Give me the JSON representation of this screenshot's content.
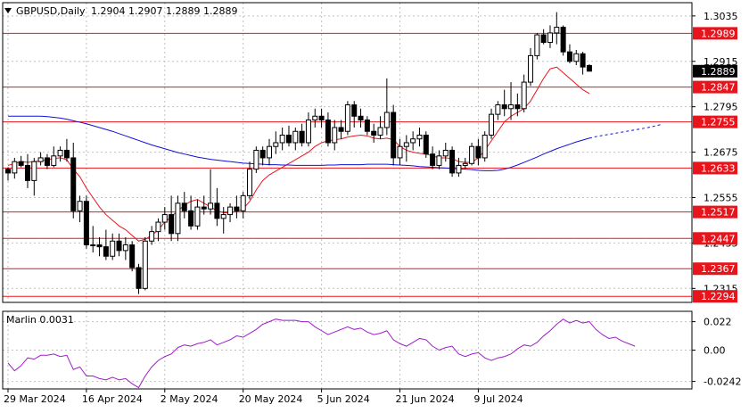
{
  "chart_data": [
    {
      "type": "candlestick",
      "title": "GBPUSD,Daily",
      "ohlc_readout": "1.2904 1.2907 1.2889 1.2889",
      "last_price": 1.2889,
      "last_price_label": "1.2889",
      "ylim": [
        1.2278,
        1.307
      ],
      "y_ticks": [
        {
          "value": 1.3035,
          "label": "1.3035"
        },
        {
          "value": 1.2915,
          "label": "1.2915"
        },
        {
          "value": 1.2795,
          "label": "1.2795"
        },
        {
          "value": 1.2675,
          "label": "1.2675"
        },
        {
          "value": 1.2555,
          "label": "1.2555"
        },
        {
          "value": 1.2435,
          "label": "1.2435"
        },
        {
          "value": 1.2315,
          "label": "1.2315"
        }
      ],
      "levels": [
        {
          "value": 1.2989,
          "label": "1.2989"
        },
        {
          "value": 1.2847,
          "label": "1.2847"
        },
        {
          "value": 1.2755,
          "label": "1.2755"
        },
        {
          "value": 1.2633,
          "label": "1.2633"
        },
        {
          "value": 1.2517,
          "label": "1.2517"
        },
        {
          "value": 1.2447,
          "label": "1.2447"
        },
        {
          "value": 1.2367,
          "label": "1.2367"
        },
        {
          "value": 1.2294,
          "label": "1.2294"
        }
      ],
      "candles": [
        [
          1.263,
          1.2635,
          1.26,
          1.262
        ],
        [
          1.262,
          1.266,
          1.2605,
          1.265
        ],
        [
          1.265,
          1.2665,
          1.2635,
          1.264
        ],
        [
          1.264,
          1.267,
          1.258,
          1.26
        ],
        [
          1.26,
          1.266,
          1.256,
          1.265
        ],
        [
          1.265,
          1.2675,
          1.264,
          1.266
        ],
        [
          1.266,
          1.267,
          1.263,
          1.264
        ],
        [
          1.264,
          1.269,
          1.2635,
          1.2665
        ],
        [
          1.2665,
          1.269,
          1.265,
          1.268
        ],
        [
          1.268,
          1.271,
          1.265,
          1.266
        ],
        [
          1.266,
          1.27,
          1.25,
          1.252
        ],
        [
          1.252,
          1.256,
          1.249,
          1.2545
        ],
        [
          1.2545,
          1.256,
          1.242,
          1.243
        ],
        [
          1.243,
          1.248,
          1.241,
          1.243
        ],
        [
          1.243,
          1.245,
          1.24,
          1.2425
        ],
        [
          1.2425,
          1.247,
          1.239,
          1.24
        ],
        [
          1.24,
          1.246,
          1.239,
          1.244
        ],
        [
          1.244,
          1.246,
          1.24,
          1.2415
        ],
        [
          1.2415,
          1.245,
          1.239,
          1.243
        ],
        [
          1.243,
          1.244,
          1.236,
          1.237
        ],
        [
          1.237,
          1.238,
          1.23,
          1.2315
        ],
        [
          1.2315,
          1.245,
          1.231,
          1.244
        ],
        [
          1.244,
          1.248,
          1.243,
          1.2465
        ],
        [
          1.2465,
          1.25,
          1.244,
          1.249
        ],
        [
          1.249,
          1.253,
          1.247,
          1.251
        ],
        [
          1.251,
          1.256,
          1.244,
          1.246
        ],
        [
          1.246,
          1.256,
          1.244,
          1.254
        ],
        [
          1.254,
          1.257,
          1.25,
          1.252
        ],
        [
          1.252,
          1.256,
          1.247,
          1.248
        ],
        [
          1.248,
          1.255,
          1.247,
          1.253
        ],
        [
          1.253,
          1.256,
          1.251,
          1.2525
        ],
        [
          1.2525,
          1.263,
          1.251,
          1.254
        ],
        [
          1.254,
          1.258,
          1.248,
          1.25
        ],
        [
          1.25,
          1.253,
          1.246,
          1.251
        ],
        [
          1.251,
          1.254,
          1.249,
          1.253
        ],
        [
          1.253,
          1.256,
          1.25,
          1.252
        ],
        [
          1.252,
          1.257,
          1.25,
          1.256
        ],
        [
          1.256,
          1.265,
          1.255,
          1.263
        ],
        [
          1.263,
          1.269,
          1.262,
          1.268
        ],
        [
          1.268,
          1.269,
          1.264,
          1.266
        ],
        [
          1.266,
          1.271,
          1.264,
          1.269
        ],
        [
          1.269,
          1.273,
          1.267,
          1.27
        ],
        [
          1.27,
          1.274,
          1.268,
          1.272
        ],
        [
          1.272,
          1.2745,
          1.269,
          1.27
        ],
        [
          1.27,
          1.274,
          1.268,
          1.273
        ],
        [
          1.273,
          1.275,
          1.269,
          1.27
        ],
        [
          1.27,
          1.278,
          1.269,
          1.276
        ],
        [
          1.276,
          1.279,
          1.274,
          1.277
        ],
        [
          1.277,
          1.279,
          1.274,
          1.276
        ],
        [
          1.276,
          1.278,
          1.269,
          1.27
        ],
        [
          1.27,
          1.276,
          1.268,
          1.274
        ],
        [
          1.274,
          1.276,
          1.271,
          1.273
        ],
        [
          1.273,
          1.281,
          1.272,
          1.28
        ],
        [
          1.28,
          1.281,
          1.274,
          1.277
        ],
        [
          1.277,
          1.279,
          1.274,
          1.276
        ],
        [
          1.276,
          1.277,
          1.272,
          1.273
        ],
        [
          1.273,
          1.275,
          1.27,
          1.272
        ],
        [
          1.272,
          1.277,
          1.271,
          1.274
        ],
        [
          1.274,
          1.287,
          1.272,
          1.278
        ],
        [
          1.278,
          1.28,
          1.264,
          1.266
        ],
        [
          1.266,
          1.271,
          1.264,
          1.269
        ],
        [
          1.269,
          1.272,
          1.265,
          1.27
        ],
        [
          1.27,
          1.273,
          1.268,
          1.271
        ],
        [
          1.271,
          1.274,
          1.269,
          1.272
        ],
        [
          1.272,
          1.273,
          1.266,
          1.267
        ],
        [
          1.267,
          1.269,
          1.263,
          1.264
        ],
        [
          1.264,
          1.268,
          1.263,
          1.2665
        ],
        [
          1.2665,
          1.27,
          1.265,
          1.268
        ],
        [
          1.268,
          1.269,
          1.261,
          1.262
        ],
        [
          1.262,
          1.266,
          1.261,
          1.264
        ],
        [
          1.264,
          1.266,
          1.263,
          1.2645
        ],
        [
          1.2645,
          1.27,
          1.264,
          1.269
        ],
        [
          1.269,
          1.271,
          1.264,
          1.266
        ],
        [
          1.266,
          1.273,
          1.265,
          1.272
        ],
        [
          1.272,
          1.279,
          1.271,
          1.2775
        ],
        [
          1.2775,
          1.281,
          1.276,
          1.28
        ],
        [
          1.28,
          1.284,
          1.277,
          1.279
        ],
        [
          1.279,
          1.286,
          1.276,
          1.28
        ],
        [
          1.28,
          1.283,
          1.277,
          1.279
        ],
        [
          1.279,
          1.288,
          1.278,
          1.286
        ],
        [
          1.286,
          1.295,
          1.285,
          1.293
        ],
        [
          1.293,
          1.299,
          1.292,
          1.2985
        ],
        [
          1.2985,
          1.3,
          1.296,
          1.2965
        ],
        [
          1.2965,
          1.301,
          1.295,
          1.299
        ],
        [
          1.299,
          1.3045,
          1.296,
          1.3005
        ],
        [
          1.3005,
          1.301,
          1.293,
          1.294
        ],
        [
          1.294,
          1.296,
          1.291,
          1.2915
        ],
        [
          1.2915,
          1.2945,
          1.2905,
          1.2935
        ],
        [
          1.2935,
          1.294,
          1.288,
          1.29
        ],
        [
          1.2904,
          1.2907,
          1.2889,
          1.2889
        ]
      ],
      "series": [
        {
          "color": "#e8141c",
          "values": [
            1.264,
            1.2645,
            1.265,
            1.2648,
            1.265,
            1.2652,
            1.2655,
            1.2658,
            1.266,
            1.2655,
            1.263,
            1.261,
            1.258,
            1.2555,
            1.253,
            1.251,
            1.2495,
            1.248,
            1.247,
            1.2455,
            1.244,
            1.2445,
            1.2455,
            1.247,
            1.249,
            1.2505,
            1.252,
            1.2535,
            1.2545,
            1.255,
            1.254,
            1.253,
            1.252,
            1.2515,
            1.2515,
            1.2518,
            1.2525,
            1.2545,
            1.2575,
            1.26,
            1.2615,
            1.2625,
            1.2635,
            1.2645,
            1.2655,
            1.2665,
            1.2675,
            1.269,
            1.27,
            1.2705,
            1.2708,
            1.271,
            1.2715,
            1.2718,
            1.272,
            1.2718,
            1.2712,
            1.271,
            1.2712,
            1.2708,
            1.269,
            1.268,
            1.2675,
            1.2672,
            1.267,
            1.2665,
            1.266,
            1.266,
            1.2658,
            1.265,
            1.2648,
            1.2648,
            1.266,
            1.268,
            1.2705,
            1.273,
            1.2755,
            1.277,
            1.278,
            1.279,
            1.281,
            1.284,
            1.287,
            1.2895,
            1.29,
            1.2885,
            1.287,
            1.2855,
            1.284,
            1.283
          ]
        },
        {
          "color": "#1010d8",
          "values": [
            1.277,
            1.277,
            1.277,
            1.277,
            1.277,
            1.277,
            1.2769,
            1.2767,
            1.2765,
            1.2762,
            1.2758,
            1.2754,
            1.275,
            1.2745,
            1.274,
            1.2735,
            1.273,
            1.2724,
            1.2718,
            1.2712,
            1.2706,
            1.27,
            1.2694,
            1.2689,
            1.2684,
            1.2679,
            1.2674,
            1.267,
            1.2666,
            1.2662,
            1.2659,
            1.2656,
            1.2654,
            1.2652,
            1.265,
            1.2648,
            1.2646,
            1.2645,
            1.2644,
            1.2643,
            1.2642,
            1.2642,
            1.2641,
            1.2641,
            1.264,
            1.264,
            1.264,
            1.264,
            1.264,
            1.2641,
            1.2641,
            1.2642,
            1.2642,
            1.2642,
            1.2642,
            1.2643,
            1.2643,
            1.2643,
            1.2643,
            1.2642,
            1.2641,
            1.264,
            1.2639,
            1.2637,
            1.2636,
            1.2635,
            1.2634,
            1.2633,
            1.2632,
            1.2631,
            1.263,
            1.2629,
            1.2627,
            1.2626,
            1.2626,
            1.2627,
            1.263,
            1.2635,
            1.2641,
            1.2648,
            1.2655,
            1.2662,
            1.267,
            1.2677,
            1.2684,
            1.269,
            1.2696,
            1.2702,
            1.2707,
            1.2712
          ]
        },
        {
          "color": "#1010d8",
          "style": "dotted",
          "values": [
            1.2712,
            1.2716,
            1.2719,
            1.2722,
            1.2725,
            1.2728,
            1.2731,
            1.2734,
            1.2737,
            1.274,
            1.2744,
            1.2748
          ]
        }
      ],
      "x_labels": [
        {
          "index": 0,
          "label": "29 Mar 2024"
        },
        {
          "index": 12,
          "label": "16 Apr 2024"
        },
        {
          "index": 24,
          "label": "2 May 2024"
        },
        {
          "index": 36,
          "label": "20 May 2024"
        },
        {
          "index": 48,
          "label": "5 Jun 2024"
        },
        {
          "index": 60,
          "label": "21 Jun 2024"
        },
        {
          "index": 72,
          "label": "9 Jul 2024"
        }
      ]
    },
    {
      "type": "line",
      "title": "Marlin 0.0031",
      "ylim": [
        -0.03,
        0.03
      ],
      "y_ticks": [
        {
          "value": 0.022,
          "label": "0.022"
        },
        {
          "value": 0.0,
          "label": "0.00"
        },
        {
          "value": -0.0242,
          "label": "-0.0242"
        }
      ],
      "series": [
        {
          "color": "#a01ccc",
          "values": [
            -0.01,
            -0.016,
            -0.012,
            -0.006,
            -0.007,
            -0.004,
            -0.004,
            -0.003,
            -0.005,
            -0.004,
            -0.015,
            -0.013,
            -0.02,
            -0.02,
            -0.022,
            -0.023,
            -0.021,
            -0.023,
            -0.022,
            -0.026,
            -0.029,
            -0.02,
            -0.013,
            -0.008,
            -0.005,
            -0.003,
            0.002,
            0.004,
            0.003,
            0.005,
            0.006,
            0.008,
            0.004,
            0.006,
            0.008,
            0.011,
            0.01,
            0.013,
            0.016,
            0.02,
            0.022,
            0.024,
            0.023,
            0.023,
            0.023,
            0.022,
            0.022,
            0.018,
            0.015,
            0.012,
            0.014,
            0.016,
            0.018,
            0.016,
            0.017,
            0.014,
            0.012,
            0.013,
            0.015,
            0.008,
            0.005,
            0.003,
            0.006,
            0.009,
            0.008,
            0.003,
            0.0,
            0.002,
            0.003,
            -0.003,
            -0.005,
            -0.003,
            -0.002,
            -0.006,
            -0.008,
            -0.006,
            -0.005,
            -0.003,
            0.001,
            0.004,
            0.003,
            0.006,
            0.011,
            0.015,
            0.02,
            0.024,
            0.021,
            0.023,
            0.021,
            0.022,
            0.016,
            0.012,
            0.009,
            0.01,
            0.007,
            0.005,
            0.003
          ]
        }
      ]
    }
  ]
}
